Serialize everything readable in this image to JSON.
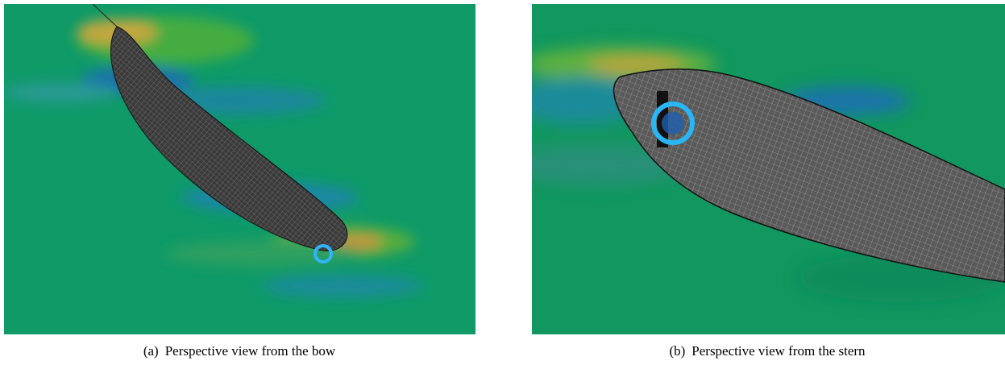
{
  "figures": [
    {
      "label": "(a)",
      "caption": "Perspective view from the bow"
    },
    {
      "label": "(b)",
      "caption": "Perspective view from the stern"
    }
  ]
}
